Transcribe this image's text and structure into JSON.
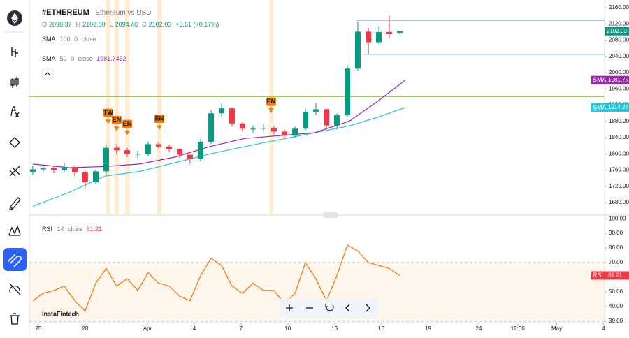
{
  "watermark": "InstaFintech",
  "chart_data": [
    {
      "type": "candlestick",
      "symbol": "#ETHEREUM",
      "description": "Ethereum vs USD",
      "ohlc": [
        {
          "label": "O",
          "value": "2098.37"
        },
        {
          "label": "H",
          "value": "2102.60"
        },
        {
          "label": "L",
          "value": "2094.46"
        },
        {
          "label": "C",
          "value": "2102.03"
        }
      ],
      "change": "+3.61 (+0.17%)",
      "indicators": [
        {
          "name": "SMA",
          "period": 100,
          "offset": 0,
          "source": "close"
        },
        {
          "name": "SMA",
          "period": 50,
          "offset": 0,
          "source": "close",
          "value": 1981.7452
        }
      ],
      "x": [
        -0.36,
        0.31,
        0.99,
        1.66,
        2.33,
        3.0,
        3.68,
        4.35,
        5.02,
        5.7,
        6.37,
        7.04,
        7.71,
        8.39,
        9.06,
        9.73,
        10.4,
        11.08,
        11.75,
        12.42,
        13.09,
        13.77,
        14.44,
        15.11,
        15.78,
        16.46,
        17.13,
        17.8,
        18.48,
        19.15,
        19.82,
        20.49,
        21.17,
        21.84,
        22.51,
        23.18
      ],
      "open": [
        1755,
        1762,
        1765,
        1760,
        1768,
        1755,
        1730,
        1757,
        1815,
        1809,
        1800,
        1800,
        1824,
        1818,
        1812,
        1798,
        1788,
        1830,
        1900,
        1912,
        1875,
        1862,
        1862,
        1864,
        1855,
        1845,
        1862,
        1904,
        1910,
        1870,
        1895,
        2010,
        2101,
        2075,
        2100,
        2098.37
      ],
      "high": [
        1770,
        1772,
        1771,
        1778,
        1772,
        1760,
        1762,
        1822,
        1825,
        1815,
        1808,
        1830,
        1828,
        1822,
        1810,
        1798,
        1838,
        1908,
        1925,
        1915,
        1878,
        1870,
        1872,
        1870,
        1860,
        1868,
        1912,
        1925,
        1912,
        1900,
        2020,
        2125,
        2110,
        2115,
        2140,
        2102.6
      ],
      "low": [
        1748,
        1755,
        1752,
        1755,
        1745,
        1715,
        1725,
        1750,
        1800,
        1792,
        1790,
        1795,
        1812,
        1805,
        1790,
        1775,
        1782,
        1825,
        1892,
        1868,
        1855,
        1852,
        1855,
        1848,
        1838,
        1840,
        1858,
        1895,
        1862,
        1860,
        1890,
        2005,
        2045,
        2070,
        2085,
        2094.46
      ],
      "close": [
        1762,
        1765,
        1760,
        1768,
        1755,
        1730,
        1757,
        1815,
        1809,
        1800,
        1800,
        1824,
        1818,
        1812,
        1798,
        1788,
        1830,
        1900,
        1912,
        1875,
        1862,
        1862,
        1864,
        1855,
        1845,
        1862,
        1904,
        1910,
        1870,
        1895,
        2010,
        2101,
        2075,
        2100,
        2096,
        2102.03
      ],
      "up_color": "#089981",
      "down_color": "#f23645",
      "last_price_label": "2102.03",
      "series": [
        {
          "name": "SMA",
          "color": "#26c6da",
          "x": [
            -0.36,
            2.02,
            4.26,
            6.5,
            8.74,
            10.99,
            13.23,
            15.47,
            17.71,
            19.96,
            21.75,
            23.54
          ],
          "values": [
            1671,
            1706,
            1745,
            1757,
            1778,
            1800,
            1818,
            1835,
            1852,
            1869,
            1890,
            1914.27
          ]
        },
        {
          "name": "SMA",
          "color": "#9c27b0",
          "x": [
            -0.36,
            2.02,
            4.26,
            6.5,
            8.74,
            10.99,
            13.23,
            15.47,
            17.71,
            19.96,
            21.75,
            23.54
          ],
          "values": [
            1775,
            1766,
            1769,
            1775,
            1792,
            1818,
            1838,
            1845,
            1852,
            1881,
            1929,
            1981.75
          ]
        }
      ],
      "signals": [
        {
          "label": "TW",
          "x": 4.48
        },
        {
          "label": "EN",
          "x": 5.02
        },
        {
          "label": "EN",
          "x": 5.7
        },
        {
          "label": "EN",
          "x": 7.76
        },
        {
          "label": "EN",
          "x": 14.93
        }
      ],
      "levels": [
        {
          "value": 1941,
          "color": "#8bc34a"
        },
        {
          "value": 2129,
          "color": "#42a5f5",
          "x": 20.4
        },
        {
          "value": 2045,
          "color": "#42a5f5",
          "x": 20.85
        }
      ],
      "xlim": [
        -0.58,
        36.32
      ],
      "ylim": [
        1651,
        2179
      ],
      "yticks": [
        {
          "value": 2160,
          "label": "2160.00"
        },
        {
          "value": 2120,
          "label": "2120.00"
        },
        {
          "value": 2080,
          "label": "2080.00"
        },
        {
          "value": 2040,
          "label": "2040.00"
        },
        {
          "value": 2000,
          "label": "2000.00"
        },
        {
          "value": 1960,
          "label": "1960.00"
        },
        {
          "value": 1920,
          "label": "1920.00"
        },
        {
          "value": 1880,
          "label": "1880.00"
        },
        {
          "value": 1840,
          "label": "1840.00"
        },
        {
          "value": 1800,
          "label": "1800.00"
        },
        {
          "value": 1760,
          "label": "1760.00"
        },
        {
          "value": 1720,
          "label": "1720.00"
        },
        {
          "value": 1680,
          "label": "1680.00"
        }
      ]
    },
    {
      "type": "line",
      "name": "RSI",
      "period": 14,
      "source": "close",
      "color": "#ff6d00",
      "x": [
        -0.36,
        0.31,
        0.99,
        1.66,
        2.33,
        3.0,
        3.68,
        4.35,
        5.02,
        5.7,
        6.37,
        7.04,
        7.71,
        8.39,
        9.06,
        9.73,
        10.4,
        11.08,
        11.75,
        12.42,
        13.09,
        13.77,
        14.44,
        15.11,
        15.78,
        16.46,
        17.13,
        17.8,
        18.48,
        19.15,
        19.82,
        20.49,
        21.17,
        21.84,
        22.51,
        23.18
      ],
      "values": [
        44,
        49,
        51,
        54,
        44,
        37,
        56,
        66,
        54,
        59,
        51,
        63,
        56,
        54,
        47,
        44,
        61,
        73,
        68,
        54,
        49,
        56,
        51,
        51,
        42,
        49,
        70,
        59,
        44,
        61,
        82,
        78,
        70,
        68,
        66,
        61.21
      ],
      "bands": [
        70,
        30
      ],
      "label_color": "#f23645",
      "xlim": [
        -0.58,
        36.32
      ],
      "ylim": [
        29,
        101.5
      ],
      "yticks": [
        {
          "value": 100,
          "label": "100.00"
        },
        {
          "value": 90,
          "label": "90.00"
        },
        {
          "value": 80,
          "label": "80.00"
        },
        {
          "value": 70,
          "label": "70.00"
        },
        {
          "value": 60,
          "label": "60.00"
        },
        {
          "value": 50,
          "label": "50.00"
        },
        {
          "value": 40,
          "label": "40.00"
        },
        {
          "value": 30,
          "label": "30.00"
        }
      ],
      "xticks": [
        {
          "value": 0,
          "label": "25"
        },
        {
          "value": 3,
          "label": "28"
        },
        {
          "value": 7,
          "label": "Apr"
        },
        {
          "value": 10,
          "label": "4"
        },
        {
          "value": 13,
          "label": "7"
        },
        {
          "value": 16,
          "label": "10"
        },
        {
          "value": 19,
          "label": "13"
        },
        {
          "value": 22,
          "label": "16"
        },
        {
          "value": 25,
          "label": "19"
        },
        {
          "value": 28.25,
          "label": "24"
        },
        {
          "value": 30.75,
          "label": "12:00"
        },
        {
          "value": 33.25,
          "label": "May"
        },
        {
          "value": 36.25,
          "label": "4"
        }
      ]
    }
  ]
}
